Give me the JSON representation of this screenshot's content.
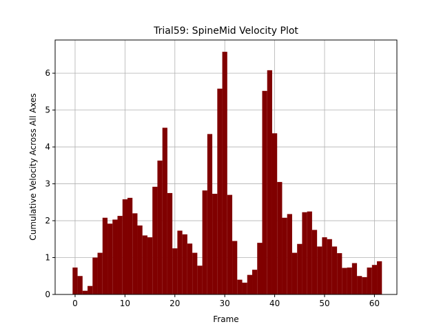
{
  "chart_data": {
    "type": "bar",
    "title": "Trial59: SpineMid Velocity Plot",
    "xlabel": "Frame",
    "ylabel": "Cumulative Velocity Across All Axes",
    "x": [
      0,
      1,
      2,
      3,
      4,
      5,
      6,
      7,
      8,
      9,
      10,
      11,
      12,
      13,
      14,
      15,
      16,
      17,
      18,
      19,
      20,
      21,
      22,
      23,
      24,
      25,
      26,
      27,
      28,
      29,
      30,
      31,
      32,
      33,
      34,
      35,
      36,
      37,
      38,
      39,
      40,
      41,
      42,
      43,
      44,
      45,
      46,
      47,
      48,
      49,
      50,
      51,
      52,
      53,
      54,
      55,
      56,
      57,
      58,
      59,
      60,
      61
    ],
    "values": [
      0.73,
      0.5,
      0.1,
      0.23,
      1.0,
      1.13,
      2.08,
      1.92,
      2.03,
      2.13,
      2.58,
      2.62,
      2.2,
      1.87,
      1.6,
      1.55,
      2.92,
      3.63,
      4.52,
      2.75,
      1.25,
      1.73,
      1.63,
      1.38,
      1.13,
      0.78,
      2.82,
      4.35,
      2.73,
      5.58,
      6.58,
      2.7,
      1.45,
      0.4,
      0.32,
      0.53,
      0.67,
      1.4,
      5.52,
      6.08,
      4.37,
      3.05,
      2.08,
      2.18,
      1.13,
      1.37,
      2.23,
      2.25,
      1.75,
      1.3,
      1.55,
      1.5,
      1.3,
      1.12,
      0.72,
      0.73,
      0.85,
      0.5,
      0.47,
      0.73,
      0.8,
      0.9
    ],
    "xlim": [
      -4.0,
      64.5
    ],
    "ylim": [
      0,
      6.9
    ],
    "xticks": [
      0,
      10,
      20,
      30,
      40,
      50,
      60
    ],
    "yticks": [
      0,
      1,
      2,
      3,
      4,
      5,
      6
    ],
    "bar_color": "#800000",
    "grid": true
  }
}
